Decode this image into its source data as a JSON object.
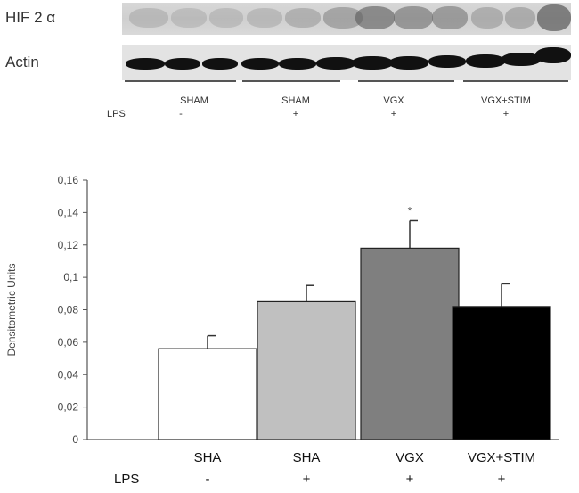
{
  "blot": {
    "hif_label": "HIF 2 α",
    "actin_label": "Actin",
    "lps_label": "LPS",
    "groups": [
      {
        "name": "SHAM",
        "lps": "-"
      },
      {
        "name": "SHAM",
        "lps": "+"
      },
      {
        "name": "VGX",
        "lps": "+"
      },
      {
        "name": "VGX+STIM",
        "lps": "+"
      }
    ]
  },
  "chart_data": {
    "type": "bar",
    "ylabel": "Densitometric Units",
    "xlabel": "",
    "ylim": [
      0,
      0.16
    ],
    "yticks": [
      "0",
      "0,02",
      "0,04",
      "0,06",
      "0,08",
      "0,1",
      "0,12",
      "0,14",
      "0,16"
    ],
    "categories": [
      "SHA",
      "SHA",
      "VGX",
      "VGX+STIM"
    ],
    "lps_row_label": "LPS",
    "lps_values": [
      "-",
      "+",
      "+",
      "+"
    ],
    "values": [
      0.056,
      0.085,
      0.118,
      0.082
    ],
    "errors": [
      0.008,
      0.01,
      0.017,
      0.014
    ],
    "bar_colors": [
      "#ffffff",
      "#c0c0c0",
      "#7f7f7f",
      "#000000"
    ],
    "annotations": [
      {
        "category_index": 2,
        "text": "*"
      }
    ],
    "grid": false
  }
}
